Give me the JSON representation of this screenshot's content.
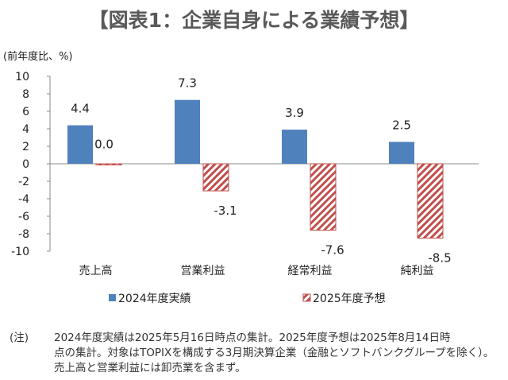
{
  "title": "【図表1：企業自身による業績予想】",
  "chart_data": {
    "type": "bar",
    "title": "【図表1：企業自身による業績予想】",
    "ylabel": "(前年度比、%)",
    "xlabel": "",
    "categories": [
      "売上高",
      "営業利益",
      "経常利益",
      "純利益"
    ],
    "series": [
      {
        "name": "2024年度実績",
        "values": [
          4.4,
          7.3,
          3.9,
          2.5
        ],
        "color": "#4f81bd",
        "pattern": "solid"
      },
      {
        "name": "2025年度予想",
        "values": [
          0.0,
          -3.1,
          -7.6,
          -8.5
        ],
        "color": "#c0504d",
        "pattern": "diagonal-hatch"
      }
    ],
    "data_labels": [
      [
        "4.4",
        "7.3",
        "3.9",
        "2.5"
      ],
      [
        "0.0",
        "-3.1",
        "-7.6",
        "-8.5"
      ]
    ],
    "ylim": [
      -10,
      10
    ],
    "yticks": [
      10,
      8,
      6,
      4,
      2,
      0,
      -2,
      -4,
      -6,
      -8,
      -10
    ],
    "grid": false,
    "legend": "bottom"
  },
  "note": {
    "label": "(注)",
    "lines": [
      "2024年度実績は2025年5月16日時点の集計。2025年度予想は2025年8月14日時",
      "点の集計。対象はTOPIXを構成する3月期決算企業（金融とソフトバンクグループを除く）。",
      "売上高と営業利益には卸売業を含まず。"
    ]
  }
}
